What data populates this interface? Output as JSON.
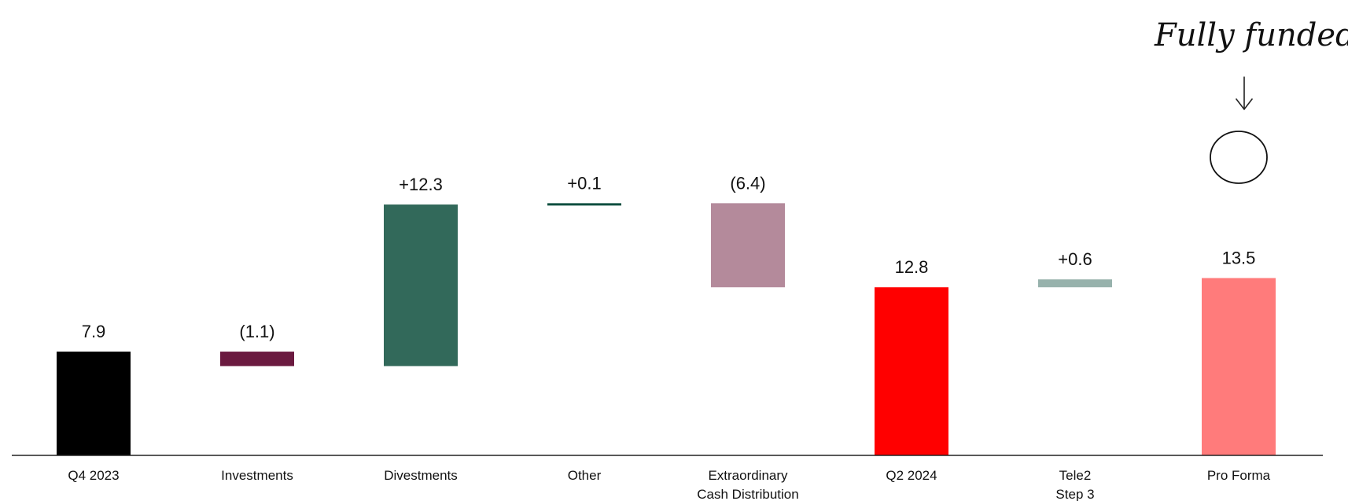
{
  "chart_data": {
    "type": "waterfall",
    "title": "",
    "xlabel": "",
    "ylabel": "",
    "ylim": [
      0,
      17
    ],
    "grid": false,
    "categories": [
      [
        "Q4 2023"
      ],
      [
        "Investments"
      ],
      [
        "Divestments"
      ],
      [
        "Other"
      ],
      [
        "Extraordinary",
        "Cash Distribution"
      ],
      [
        "Q2 2024"
      ],
      [
        "Tele2",
        "Step 3"
      ],
      [
        "Pro Forma"
      ]
    ],
    "bars": [
      {
        "kind": "total",
        "start": 0,
        "end": 7.9,
        "label": "7.9",
        "color": "#000000"
      },
      {
        "kind": "delta",
        "start": 7.9,
        "end": 6.8,
        "label": "(1.1)",
        "color": "#6B1A40"
      },
      {
        "kind": "delta",
        "start": 6.8,
        "end": 19.1,
        "label": "+12.3",
        "color": "#32695A"
      },
      {
        "kind": "delta",
        "start": 19.1,
        "end": 19.2,
        "label": "+0.1",
        "color": "#0F4F40"
      },
      {
        "kind": "delta",
        "start": 19.2,
        "end": 12.8,
        "label": "(6.4)",
        "color": "#B48A9B"
      },
      {
        "kind": "total",
        "start": 0,
        "end": 12.8,
        "label": "12.8",
        "color": "#FF0000"
      },
      {
        "kind": "delta",
        "start": 12.8,
        "end": 13.4,
        "label": "+0.6",
        "color": "#97B2AC"
      },
      {
        "kind": "total",
        "start": 0,
        "end": 13.5,
        "label": "13.5",
        "color": "#FF7B7B"
      }
    ],
    "annotation": {
      "text": "Fully funded",
      "target": "Pro Forma",
      "circled_label": "13.5"
    }
  }
}
